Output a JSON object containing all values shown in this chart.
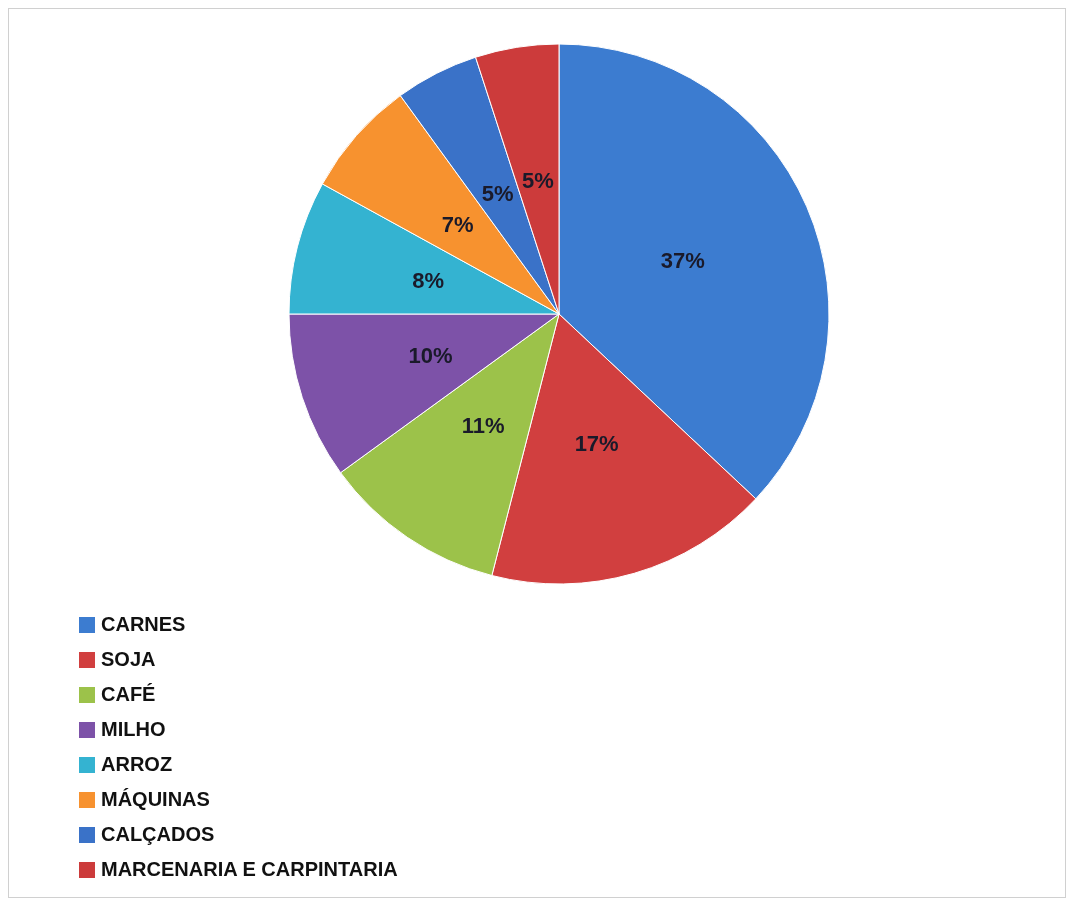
{
  "chart_data": {
    "type": "pie",
    "categories": [
      "CARNES",
      "SOJA",
      "CAFÉ",
      "MILHO",
      "ARROZ",
      "MÁQUINAS",
      "CALÇADOS",
      "MARCENARIA E CARPINTARIA"
    ],
    "values": [
      37,
      17,
      11,
      10,
      8,
      7,
      5,
      5
    ],
    "colors": [
      "#3c7cd0",
      "#d13f3f",
      "#9cc24a",
      "#7d52a8",
      "#34b3d1",
      "#f7922f",
      "#3a72c8",
      "#cc3b3b"
    ],
    "value_labels": [
      "37%",
      "17%",
      "11%",
      "10%",
      "8%",
      "7%",
      "5%",
      "5%"
    ],
    "legend": "bottom left"
  }
}
